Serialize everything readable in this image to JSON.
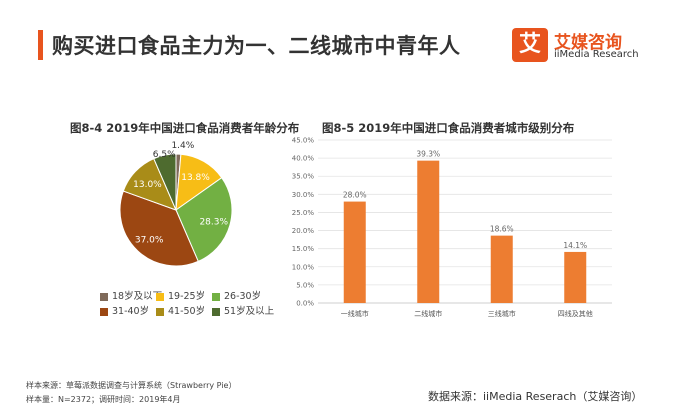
{
  "header": {
    "title": "购买进口食品主力为一、二线城市中青年人",
    "accent_color": "#e8541e"
  },
  "logo": {
    "glyph": "艾",
    "name_cn": "艾媒咨询",
    "name_en": "iiMedia Research",
    "color": "#e8541e"
  },
  "chart_data": [
    {
      "type": "pie",
      "title": "图8-4  2019年中国进口食品消费者年龄分布",
      "slices": [
        {
          "label": "18岁及以下",
          "value": 1.4,
          "display": "1.4%",
          "color": "#7f6a5a"
        },
        {
          "label": "19-25岁",
          "value": 13.8,
          "display": "13.8%",
          "color": "#f7bd16"
        },
        {
          "label": "26-30岁",
          "value": 28.3,
          "display": "28.3%",
          "color": "#72b043"
        },
        {
          "label": "31-40岁",
          "value": 37.0,
          "display": "37.0%",
          "color": "#9c4712"
        },
        {
          "label": "41-50岁",
          "value": 13.0,
          "display": "13.0%",
          "color": "#a98c18"
        },
        {
          "label": "51岁及以上",
          "value": 6.5,
          "display": "6.5%",
          "color": "#4e6b2f"
        }
      ],
      "legend_position": "bottom"
    },
    {
      "type": "bar",
      "title": "图8-5  2019年中国进口食品消费者城市级别分布",
      "categories": [
        "一线城市",
        "二线城市",
        "三线城市",
        "四线及其他"
      ],
      "values": [
        28.0,
        39.3,
        18.6,
        14.1
      ],
      "value_labels": [
        "28.0%",
        "39.3%",
        "18.6%",
        "14.1%"
      ],
      "ylim": [
        0,
        45
      ],
      "yticks": [
        "0.0%",
        "5.0%",
        "10.0%",
        "15.0%",
        "20.0%",
        "25.0%",
        "30.0%",
        "35.0%",
        "40.0%",
        "45.0%"
      ],
      "bar_color": "#ed7d31",
      "grid": true
    }
  ],
  "footnote": {
    "line1": "样本来源：草莓派数据调查与计算系统（Strawberry Pie）",
    "line2": "样本量：N=2372；调研时间：2019年4月"
  },
  "source": "数据来源：iiMedia Reserach（艾媒咨询）"
}
